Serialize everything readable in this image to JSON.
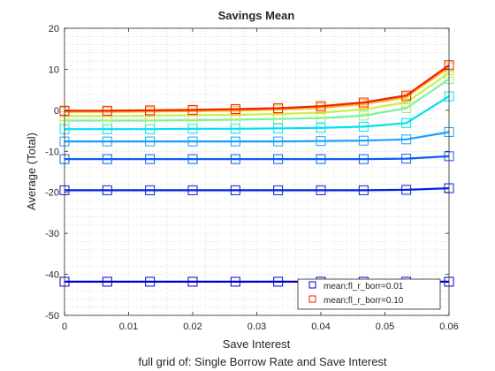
{
  "chart_data": {
    "type": "line",
    "title": "Savings Mean",
    "xlabel": "Save Interest",
    "ylabel": "Average (Total)",
    "caption": "full grid of: Single Borrow Rate and Save Interest",
    "xlim": [
      0,
      0.06
    ],
    "ylim": [
      -50,
      20
    ],
    "xticks": [
      0,
      0.01,
      0.02,
      0.03,
      0.04,
      0.05,
      0.06
    ],
    "xtick_labels": [
      "0",
      "0.01",
      "0.02",
      "0.03",
      "0.04",
      "0.05",
      "0.06"
    ],
    "yticks": [
      20,
      10,
      0,
      -10,
      -20,
      -30,
      -40,
      -50
    ],
    "ytick_labels": [
      "20",
      "10",
      "0",
      "-10",
      "-20",
      "-30",
      "-40",
      "-50"
    ],
    "grid": "minor dotted",
    "marker": "square",
    "legend_position": "bottom-right",
    "x": [
      0,
      0.00667,
      0.01333,
      0.02,
      0.02667,
      0.03333,
      0.04,
      0.04667,
      0.05333,
      0.06
    ],
    "series": [
      {
        "name": "mean;fl_r_borr=0.01",
        "color": "#0000cc",
        "values": [
          -41.8,
          -41.8,
          -41.8,
          -41.8,
          -41.8,
          -41.8,
          -41.8,
          -41.8,
          -41.8,
          -41.8
        ]
      },
      {
        "name": "",
        "color": "#0022dd",
        "values": [
          -19.5,
          -19.5,
          -19.5,
          -19.5,
          -19.5,
          -19.5,
          -19.5,
          -19.5,
          -19.4,
          -19.0
        ]
      },
      {
        "name": "",
        "color": "#0a5cf0",
        "values": [
          -11.9,
          -11.9,
          -11.9,
          -11.9,
          -11.9,
          -11.9,
          -11.9,
          -11.9,
          -11.8,
          -11.2
        ]
      },
      {
        "name": "",
        "color": "#1aa0ff",
        "values": [
          -7.6,
          -7.6,
          -7.6,
          -7.6,
          -7.6,
          -7.6,
          -7.5,
          -7.4,
          -7.1,
          -5.3
        ]
      },
      {
        "name": "",
        "color": "#00e0ee",
        "values": [
          -4.6,
          -4.6,
          -4.6,
          -4.5,
          -4.5,
          -4.4,
          -4.3,
          -4.0,
          -3.1,
          3.4
        ]
      },
      {
        "name": "",
        "color": "#7ff0a0",
        "values": [
          -2.5,
          -2.5,
          -2.5,
          -2.4,
          -2.3,
          -2.1,
          -1.9,
          -1.3,
          0.5,
          7.6
        ]
      },
      {
        "name": "",
        "color": "#c8f048",
        "values": [
          -1.4,
          -1.4,
          -1.3,
          -1.2,
          -1.1,
          -0.9,
          -0.6,
          0.2,
          1.9,
          9.1
        ]
      },
      {
        "name": "",
        "color": "#ffb020",
        "values": [
          -0.4,
          -0.4,
          -0.3,
          -0.2,
          -0.1,
          0.2,
          0.6,
          1.5,
          3.2,
          10.5
        ]
      },
      {
        "name": "mean;fl_r_borr=0.10",
        "color": "#ee2200",
        "values": [
          -0.1,
          -0.1,
          0.0,
          0.1,
          0.3,
          0.5,
          1.0,
          1.9,
          3.6,
          11.0
        ]
      }
    ]
  }
}
